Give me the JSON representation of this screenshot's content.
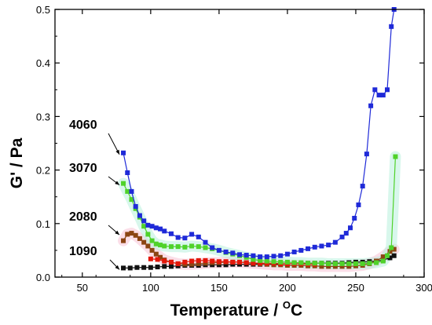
{
  "chart_data": {
    "type": "line",
    "title": "",
    "xlabel": "Temperature / ",
    "xlabel_sup": "O",
    "xlabel_unit": "C",
    "ylabel": "G' / Pa",
    "xlim": [
      30,
      300
    ],
    "ylim": [
      0,
      0.5
    ],
    "x_ticks": [
      50,
      100,
      150,
      200,
      250,
      300
    ],
    "y_ticks": [
      0.0,
      0.1,
      0.2,
      0.3,
      0.4,
      0.5
    ],
    "grid": false,
    "series": [
      {
        "name": "1090",
        "color": "#111111",
        "x": [
          80,
          85,
          90,
          95,
          100,
          105,
          110,
          115,
          120,
          125,
          130,
          135,
          140,
          145,
          150,
          155,
          160,
          165,
          170,
          175,
          180,
          185,
          190,
          195,
          200,
          205,
          210,
          215,
          220,
          225,
          230,
          235,
          240,
          245,
          250,
          255,
          260,
          265,
          270,
          275,
          278
        ],
        "y": [
          0.017,
          0.017,
          0.018,
          0.018,
          0.018,
          0.019,
          0.02,
          0.02,
          0.021,
          0.022,
          0.022,
          0.022,
          0.023,
          0.023,
          0.023,
          0.023,
          0.024,
          0.024,
          0.024,
          0.024,
          0.024,
          0.024,
          0.024,
          0.025,
          0.025,
          0.025,
          0.025,
          0.026,
          0.026,
          0.026,
          0.026,
          0.026,
          0.026,
          0.027,
          0.028,
          0.028,
          0.029,
          0.03,
          0.032,
          0.036,
          0.04
        ]
      },
      {
        "name": "2080",
        "color": "#8b4513",
        "x": [
          80,
          83,
          86,
          89,
          92,
          95,
          98,
          101,
          104,
          107,
          110,
          115,
          120,
          125,
          130,
          135,
          140,
          145,
          150,
          155,
          160,
          165,
          170,
          175,
          180,
          185,
          190,
          195,
          200,
          205,
          210,
          215,
          220,
          225,
          230,
          235,
          240,
          245,
          250,
          255,
          260,
          265,
          270,
          275,
          278
        ],
        "y": [
          0.068,
          0.08,
          0.082,
          0.078,
          0.072,
          0.065,
          0.058,
          0.05,
          0.043,
          0.037,
          0.032,
          0.028,
          0.025,
          0.024,
          0.024,
          0.025,
          0.026,
          0.027,
          0.027,
          0.028,
          0.028,
          0.028,
          0.027,
          0.026,
          0.025,
          0.024,
          0.023,
          0.023,
          0.022,
          0.022,
          0.022,
          0.021,
          0.021,
          0.02,
          0.02,
          0.02,
          0.02,
          0.02,
          0.021,
          0.022,
          0.025,
          0.03,
          0.038,
          0.048,
          0.052
        ]
      },
      {
        "name": "red series",
        "color": "#e3170a",
        "x": [
          100,
          105,
          110,
          115,
          120,
          125,
          130,
          135,
          140,
          145,
          150,
          155,
          160,
          165,
          170,
          175,
          180,
          185,
          190,
          195,
          200,
          205,
          210,
          215,
          220
        ],
        "y": [
          0.034,
          0.033,
          0.03,
          0.028,
          0.025,
          0.028,
          0.03,
          0.031,
          0.031,
          0.03,
          0.029,
          0.029,
          0.028,
          0.028,
          0.027,
          0.026,
          0.026,
          0.026,
          0.026,
          0.025,
          0.025,
          0.025,
          0.025,
          0.024,
          0.024
        ]
      },
      {
        "name": "3070",
        "color": "#4fd22a",
        "x": [
          80,
          83,
          86,
          89,
          92,
          95,
          98,
          101,
          104,
          107,
          110,
          115,
          120,
          125,
          130,
          135,
          140,
          145,
          150,
          155,
          160,
          165,
          170,
          175,
          180,
          185,
          190,
          195,
          200,
          205,
          210,
          215,
          220,
          225,
          230,
          235,
          240,
          245,
          250,
          255,
          260,
          265,
          270,
          273,
          276,
          279
        ],
        "y": [
          0.175,
          0.16,
          0.145,
          0.128,
          0.112,
          0.095,
          0.08,
          0.068,
          0.062,
          0.06,
          0.058,
          0.057,
          0.057,
          0.056,
          0.058,
          0.057,
          0.055,
          0.053,
          0.05,
          0.046,
          0.043,
          0.04,
          0.037,
          0.033,
          0.031,
          0.03,
          0.029,
          0.028,
          0.028,
          0.027,
          0.027,
          0.026,
          0.026,
          0.026,
          0.025,
          0.025,
          0.025,
          0.025,
          0.025,
          0.025,
          0.026,
          0.027,
          0.03,
          0.04,
          0.055,
          0.225
        ]
      },
      {
        "name": "4060",
        "color": "#1f2ad8",
        "x": [
          80,
          83,
          86,
          89,
          92,
          95,
          98,
          101,
          104,
          107,
          110,
          115,
          120,
          125,
          130,
          135,
          140,
          145,
          150,
          155,
          160,
          165,
          170,
          175,
          180,
          185,
          190,
          195,
          200,
          205,
          210,
          215,
          220,
          225,
          230,
          235,
          240,
          243,
          246,
          249,
          252,
          255,
          258,
          261,
          264,
          267,
          270,
          273,
          276,
          278
        ],
        "y": [
          0.232,
          0.195,
          0.16,
          0.132,
          0.115,
          0.105,
          0.097,
          0.095,
          0.092,
          0.09,
          0.086,
          0.081,
          0.074,
          0.073,
          0.08,
          0.075,
          0.065,
          0.055,
          0.05,
          0.047,
          0.045,
          0.042,
          0.041,
          0.04,
          0.038,
          0.038,
          0.039,
          0.04,
          0.043,
          0.047,
          0.05,
          0.053,
          0.056,
          0.058,
          0.06,
          0.065,
          0.075,
          0.082,
          0.092,
          0.11,
          0.135,
          0.17,
          0.23,
          0.32,
          0.35,
          0.34,
          0.34,
          0.35,
          0.468,
          0.5
        ]
      }
    ],
    "annotations": [
      {
        "text": "4060",
        "x": 80,
        "y": 0.232
      },
      {
        "text": "3070",
        "x": 80,
        "y": 0.175
      },
      {
        "text": "2080",
        "x": 80,
        "y": 0.082
      },
      {
        "text": "1090",
        "x": 80,
        "y": 0.017
      }
    ]
  }
}
